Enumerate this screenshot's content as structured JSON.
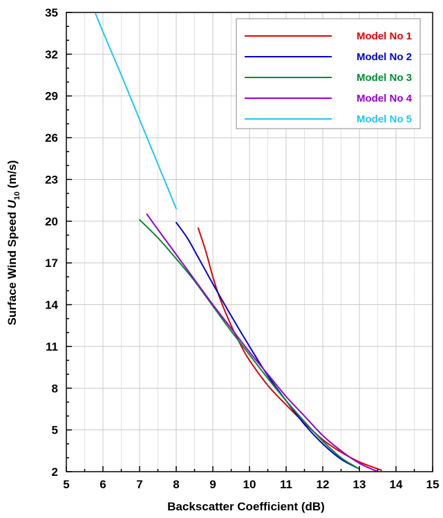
{
  "chart_data": {
    "type": "line",
    "title": "",
    "xlabel": "Backscatter Coefficient (dB)",
    "ylabel_parts": {
      "main": "Surface Wind Speed ",
      "italic": "U",
      "sub": "10",
      "tail": " (m/s)"
    },
    "xlim": [
      5,
      15
    ],
    "ylim": [
      2,
      35
    ],
    "xticks": [
      5,
      6,
      7,
      8,
      9,
      10,
      11,
      12,
      13,
      14,
      15
    ],
    "yticks": [
      2,
      5,
      8,
      11,
      14,
      17,
      20,
      23,
      26,
      29,
      32,
      35
    ],
    "grid": true,
    "legend_position": "top-right",
    "series": [
      {
        "name": "Model No 1",
        "color": "#e00000",
        "x": [
          8.6,
          8.8,
          9.0,
          9.2,
          9.5,
          9.8,
          10.0,
          10.5,
          11.0,
          11.5,
          12.0,
          12.5,
          13.0,
          13.6
        ],
        "y": [
          19.5,
          17.9,
          16.0,
          14.4,
          12.5,
          10.9,
          10.0,
          8.2,
          6.8,
          5.5,
          4.3,
          3.4,
          2.7,
          2.1
        ]
      },
      {
        "name": "Model No 2",
        "color": "#0000d0",
        "x": [
          8.0,
          8.3,
          8.6,
          9.0,
          9.5,
          10.0,
          10.5,
          11.0,
          11.5,
          12.0,
          12.5,
          13.0
        ],
        "y": [
          19.9,
          18.8,
          17.4,
          15.5,
          13.2,
          11.0,
          8.9,
          7.1,
          5.4,
          4.0,
          2.9,
          2.2
        ]
      },
      {
        "name": "Model No 3",
        "color": "#008c30",
        "x": [
          7.0,
          7.5,
          8.0,
          8.5,
          9.0,
          9.5,
          10.0,
          10.5,
          11.0,
          11.5,
          12.0,
          12.5,
          13.0
        ],
        "y": [
          20.1,
          18.8,
          17.3,
          15.7,
          13.9,
          12.1,
          10.4,
          8.7,
          7.1,
          5.6,
          4.2,
          3.0,
          2.2
        ]
      },
      {
        "name": "Model No 4",
        "color": "#9400d3",
        "x": [
          7.2,
          7.5,
          8.0,
          8.5,
          9.0,
          9.5,
          10.0,
          10.5,
          11.0,
          11.5,
          12.0,
          12.5,
          13.0,
          13.5
        ],
        "y": [
          20.5,
          19.4,
          17.6,
          15.8,
          14.0,
          12.3,
          10.6,
          9.0,
          7.4,
          6.0,
          4.6,
          3.5,
          2.6,
          2.0
        ]
      },
      {
        "name": "Model No 5",
        "color": "#1ec8f0",
        "x": [
          5.8,
          6.0,
          6.5,
          7.0,
          7.5,
          8.0
        ],
        "y": [
          34.9,
          33.6,
          30.5,
          27.3,
          24.1,
          20.9
        ]
      }
    ]
  }
}
